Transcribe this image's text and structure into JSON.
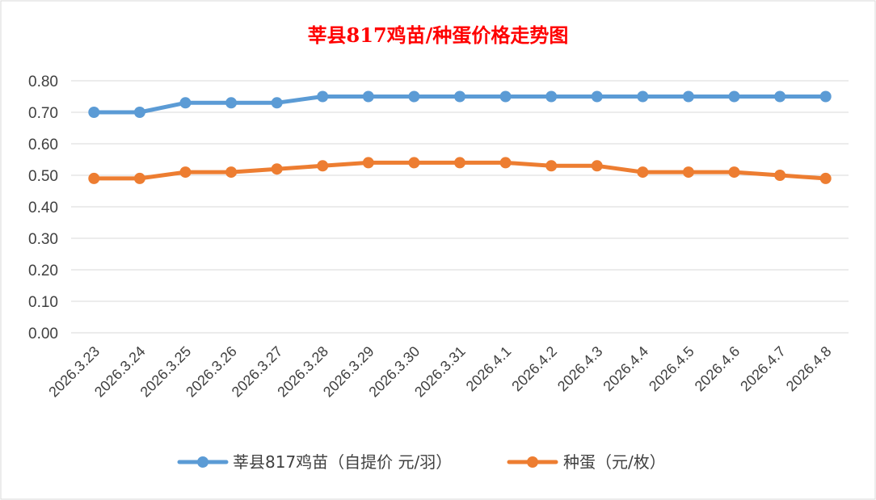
{
  "chart_data": {
    "type": "line",
    "title": "莘县817鸡苗/种蛋价格走势图",
    "categories": [
      "2026.3.23",
      "2026.3.24",
      "2026.3.25",
      "2026.3.26",
      "2026.3.27",
      "2026.3.28",
      "2026.3.29",
      "2026.3.30",
      "2026.3.31",
      "2026.4.1",
      "2026.4.2",
      "2026.4.3",
      "2026.4.4",
      "2026.4.5",
      "2026.4.6",
      "2026.4.7",
      "2026.4.8"
    ],
    "series": [
      {
        "name": "莘县817鸡苗（自提价 元/羽）",
        "color": "#5b9bd5",
        "values": [
          0.7,
          0.7,
          0.73,
          0.73,
          0.73,
          0.75,
          0.75,
          0.75,
          0.75,
          0.75,
          0.75,
          0.75,
          0.75,
          0.75,
          0.75,
          0.75,
          0.75
        ]
      },
      {
        "name": "种蛋（元/枚）",
        "color": "#ed7d31",
        "values": [
          0.49,
          0.49,
          0.51,
          0.51,
          0.52,
          0.53,
          0.54,
          0.54,
          0.54,
          0.54,
          0.53,
          0.53,
          0.51,
          0.51,
          0.51,
          0.5,
          0.49
        ]
      }
    ],
    "ylim": [
      0,
      0.8
    ],
    "yticks": [
      "0.00",
      "0.10",
      "0.20",
      "0.30",
      "0.40",
      "0.50",
      "0.60",
      "0.70",
      "0.80"
    ],
    "xlabel": "",
    "ylabel": "",
    "grid": true,
    "legend": "bottom"
  }
}
